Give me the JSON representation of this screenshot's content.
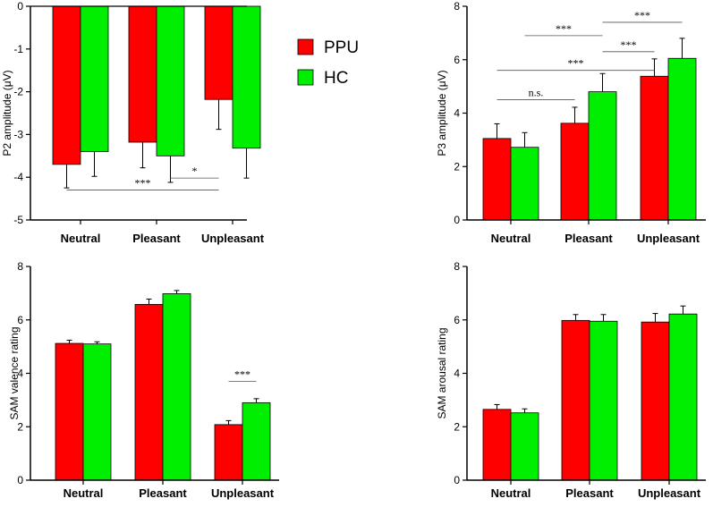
{
  "colors": {
    "PPU": "#ff0000",
    "HC": "#00ee00",
    "axis": "#000000"
  },
  "legend": [
    {
      "name": "PPU",
      "color": "#ff0000"
    },
    {
      "name": "HC",
      "color": "#00ee00"
    }
  ],
  "chart_data": [
    {
      "id": "p2",
      "type": "bar",
      "categories": [
        "Neutral",
        "Pleasant",
        "Unpleasant"
      ],
      "ylabel": "P2 amplitude (μV)",
      "ylim": [
        -5,
        0
      ],
      "yticks": [
        "0",
        "-1",
        "-2",
        "-3",
        "-4",
        "-5"
      ],
      "ytick_values": [
        0,
        -1,
        -2,
        -3,
        -4,
        -5
      ],
      "series": [
        {
          "name": "PPU",
          "values": [
            -3.7,
            -3.18,
            -2.18
          ],
          "errors": [
            0.55,
            0.6,
            0.7
          ]
        },
        {
          "name": "HC",
          "values": [
            -3.4,
            -3.5,
            -3.32
          ],
          "errors": [
            0.58,
            0.62,
            0.7
          ]
        }
      ],
      "significance": [
        {
          "from": [
            "Pleasant",
            "HC"
          ],
          "to": [
            "Unpleasant",
            "PPU"
          ],
          "y": -4.02,
          "label": "*"
        },
        {
          "from": [
            "Neutral",
            "PPU"
          ],
          "to": [
            "Unpleasant",
            "PPU"
          ],
          "y": -4.3,
          "label": "***"
        }
      ]
    },
    {
      "id": "p3",
      "type": "bar",
      "categories": [
        "Neutral",
        "Pleasant",
        "Unpleasant"
      ],
      "ylabel": "P3 amplitude (μV)",
      "ylim": [
        0,
        8
      ],
      "yticks": [
        "0",
        "2",
        "4",
        "6",
        "8"
      ],
      "ytick_values": [
        0,
        2,
        4,
        6,
        8
      ],
      "series": [
        {
          "name": "PPU",
          "values": [
            3.05,
            3.62,
            5.38
          ],
          "errors": [
            0.55,
            0.6,
            0.65
          ]
        },
        {
          "name": "HC",
          "values": [
            2.72,
            4.8,
            6.05
          ],
          "errors": [
            0.55,
            0.68,
            0.75
          ]
        }
      ],
      "significance": [
        {
          "from": [
            "Pleasant",
            "HC"
          ],
          "to": [
            "Unpleasant",
            "HC"
          ],
          "y": 7.4,
          "label": "***"
        },
        {
          "from": [
            "Neutral",
            "HC"
          ],
          "to": [
            "Pleasant",
            "HC"
          ],
          "y": 6.9,
          "label": "***"
        },
        {
          "from": [
            "Pleasant",
            "HC"
          ],
          "to": [
            "Unpleasant",
            "PPU"
          ],
          "y": 6.3,
          "label": "***"
        },
        {
          "from": [
            "Neutral",
            "PPU"
          ],
          "to": [
            "Unpleasant",
            "PPU"
          ],
          "y": 5.6,
          "label": "***"
        },
        {
          "from": [
            "Neutral",
            "PPU"
          ],
          "to": [
            "Pleasant",
            "PPU"
          ],
          "y": 4.5,
          "label": "n.s."
        }
      ]
    },
    {
      "id": "valence",
      "type": "bar",
      "categories": [
        "Neutral",
        "Pleasant",
        "Unpleasant"
      ],
      "ylabel": "SAM valence rating",
      "ylim": [
        0,
        8
      ],
      "yticks": [
        "0",
        "2",
        "4",
        "6",
        "8"
      ],
      "ytick_values": [
        0,
        2,
        4,
        6,
        8
      ],
      "series": [
        {
          "name": "PPU",
          "values": [
            5.12,
            6.58,
            2.08
          ],
          "errors": [
            0.12,
            0.2,
            0.15
          ]
        },
        {
          "name": "HC",
          "values": [
            5.1,
            6.98,
            2.9
          ],
          "errors": [
            0.08,
            0.12,
            0.15
          ]
        }
      ],
      "significance": [
        {
          "from": [
            "Unpleasant",
            "PPU"
          ],
          "to": [
            "Unpleasant",
            "HC"
          ],
          "y": 3.7,
          "label": "***"
        }
      ]
    },
    {
      "id": "arousal",
      "type": "bar",
      "categories": [
        "Neutral",
        "Pleasant",
        "Unpleasant"
      ],
      "ylabel": "SAM arousal rating",
      "ylim": [
        0,
        8
      ],
      "yticks": [
        "0",
        "2",
        "4",
        "6",
        "8"
      ],
      "ytick_values": [
        0,
        2,
        4,
        6,
        8
      ],
      "series": [
        {
          "name": "PPU",
          "values": [
            2.65,
            5.98,
            5.92
          ],
          "errors": [
            0.18,
            0.22,
            0.32
          ]
        },
        {
          "name": "HC",
          "values": [
            2.52,
            5.95,
            6.22
          ],
          "errors": [
            0.15,
            0.25,
            0.3
          ]
        }
      ],
      "significance": []
    }
  ]
}
